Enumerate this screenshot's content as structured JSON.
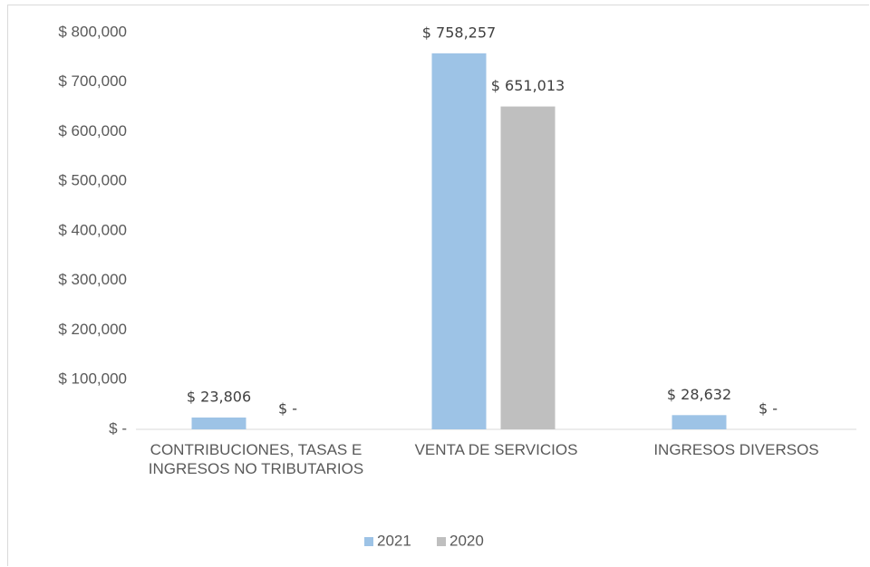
{
  "chart_data": {
    "type": "bar",
    "categories": [
      "CONTRIBUCIONES, TASAS E INGRESOS NO TRIBUTARIOS",
      "VENTA DE SERVICIOS",
      "INGRESOS DIVERSOS"
    ],
    "series": [
      {
        "name": "2021",
        "color": "#9dc3e6",
        "values": [
          23806,
          758257,
          28632
        ],
        "value_labels": [
          "$ 23,806",
          "$ 758,257",
          "$ 28,632"
        ]
      },
      {
        "name": "2020",
        "color": "#bfbfbf",
        "values": [
          0,
          651013,
          0
        ],
        "value_labels": [
          "$ -",
          "$ 651,013",
          "$ -"
        ]
      }
    ],
    "ylim": [
      0,
      800000
    ],
    "yticks": [
      {
        "value": 0,
        "label": "$ -"
      },
      {
        "value": 100000,
        "label": "$ 100,000"
      },
      {
        "value": 200000,
        "label": "$ 200,000"
      },
      {
        "value": 300000,
        "label": "$ 300,000"
      },
      {
        "value": 400000,
        "label": "$ 400,000"
      },
      {
        "value": 500000,
        "label": "$ 500,000"
      },
      {
        "value": 600000,
        "label": "$ 600,000"
      },
      {
        "value": 700000,
        "label": "$ 700,000"
      },
      {
        "value": 800000,
        "label": "$ 800,000"
      }
    ],
    "grid": false,
    "legend": "bottom"
  }
}
